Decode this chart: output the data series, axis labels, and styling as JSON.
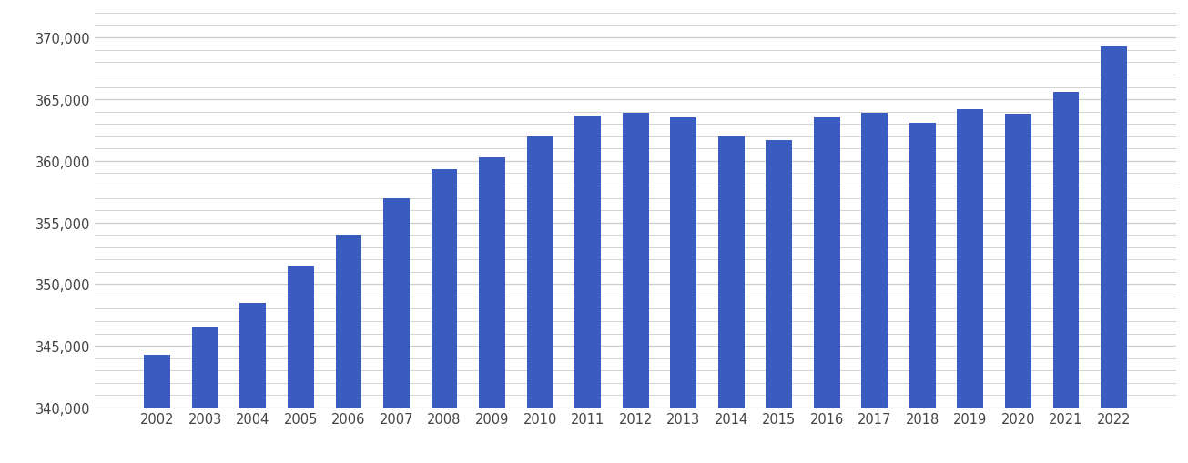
{
  "years": [
    2002,
    2003,
    2004,
    2005,
    2006,
    2007,
    2008,
    2009,
    2010,
    2011,
    2012,
    2013,
    2014,
    2015,
    2016,
    2017,
    2018,
    2019,
    2020,
    2021,
    2022
  ],
  "values": [
    344300,
    346500,
    348500,
    351500,
    354000,
    357000,
    359300,
    360300,
    362000,
    363700,
    363900,
    363500,
    362000,
    361700,
    363500,
    363900,
    363100,
    364200,
    363800,
    365600,
    369300
  ],
  "bar_color": "#3a5bbf",
  "background_color": "#ffffff",
  "grid_color": "#cccccc",
  "ylim": [
    340000,
    372000
  ],
  "major_yticks": [
    340000,
    345000,
    350000,
    355000,
    360000,
    365000,
    370000
  ],
  "minor_ytick_step": 1000,
  "bar_width": 0.55,
  "xlabel": "",
  "ylabel": "",
  "title": ""
}
